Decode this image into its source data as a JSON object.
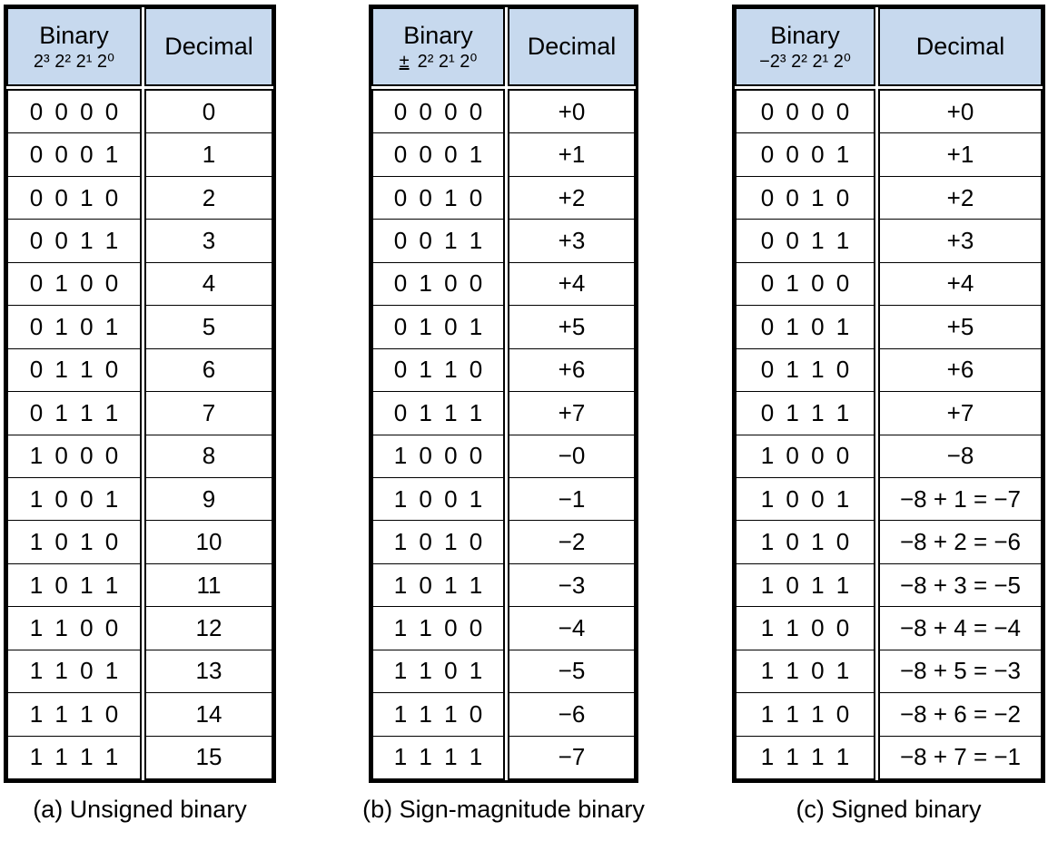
{
  "page": {
    "background_color": "#ffffff",
    "header_fill_color": "#c7d9ee",
    "border_color": "#000000"
  },
  "tables": [
    {
      "caption": "(a) Unsigned binary",
      "header": {
        "binary_label": "Binary",
        "sign_prefix": "",
        "powers": "2³ 2² 2¹ 2⁰",
        "decimal_label": "Decimal"
      },
      "rows": [
        {
          "binary": "0 0 0 0",
          "decimal": "0"
        },
        {
          "binary": "0 0 0 1",
          "decimal": "1"
        },
        {
          "binary": "0 0 1 0",
          "decimal": "2"
        },
        {
          "binary": "0 0 1 1",
          "decimal": "3"
        },
        {
          "binary": "0 1 0 0",
          "decimal": "4"
        },
        {
          "binary": "0 1 0 1",
          "decimal": "5"
        },
        {
          "binary": "0 1 1 0",
          "decimal": "6"
        },
        {
          "binary": "0 1 1 1",
          "decimal": "7"
        },
        {
          "binary": "1 0 0 0",
          "decimal": "8"
        },
        {
          "binary": "1 0 0 1",
          "decimal": "9"
        },
        {
          "binary": "1 0 1 0",
          "decimal": "10"
        },
        {
          "binary": "1 0 1 1",
          "decimal": "11"
        },
        {
          "binary": "1 1 0 0",
          "decimal": "12"
        },
        {
          "binary": "1 1 0 1",
          "decimal": "13"
        },
        {
          "binary": "1 1 1 0",
          "decimal": "14"
        },
        {
          "binary": "1 1 1 1",
          "decimal": "15"
        }
      ]
    },
    {
      "caption": "(b) Sign-magnitude binary",
      "header": {
        "binary_label": "Binary",
        "sign_prefix": "±",
        "powers": "2² 2¹ 2⁰",
        "decimal_label": "Decimal"
      },
      "rows": [
        {
          "binary": "0 0 0 0",
          "decimal": "+0"
        },
        {
          "binary": "0 0 0 1",
          "decimal": "+1"
        },
        {
          "binary": "0 0 1 0",
          "decimal": "+2"
        },
        {
          "binary": "0 0 1 1",
          "decimal": "+3"
        },
        {
          "binary": "0 1 0 0",
          "decimal": "+4"
        },
        {
          "binary": "0 1 0 1",
          "decimal": "+5"
        },
        {
          "binary": "0 1 1 0",
          "decimal": "+6"
        },
        {
          "binary": "0 1 1 1",
          "decimal": "+7"
        },
        {
          "binary": "1 0 0 0",
          "decimal": "−0"
        },
        {
          "binary": "1 0 0 1",
          "decimal": "−1"
        },
        {
          "binary": "1 0 1 0",
          "decimal": "−2"
        },
        {
          "binary": "1 0 1 1",
          "decimal": "−3"
        },
        {
          "binary": "1 1 0 0",
          "decimal": "−4"
        },
        {
          "binary": "1 1 0 1",
          "decimal": "−5"
        },
        {
          "binary": "1 1 1 0",
          "decimal": "−6"
        },
        {
          "binary": "1 1 1 1",
          "decimal": "−7"
        }
      ]
    },
    {
      "caption": "(c) Signed binary",
      "header": {
        "binary_label": "Binary",
        "sign_prefix": "",
        "powers": "−2³ 2² 2¹ 2⁰",
        "decimal_label": "Decimal"
      },
      "rows": [
        {
          "binary": "0 0 0 0",
          "decimal": "+0"
        },
        {
          "binary": "0 0 0 1",
          "decimal": "+1"
        },
        {
          "binary": "0 0 1 0",
          "decimal": "+2"
        },
        {
          "binary": "0 0 1 1",
          "decimal": "+3"
        },
        {
          "binary": "0 1 0 0",
          "decimal": "+4"
        },
        {
          "binary": "0 1 0 1",
          "decimal": "+5"
        },
        {
          "binary": "0 1 1 0",
          "decimal": "+6"
        },
        {
          "binary": "0 1 1 1",
          "decimal": "+7"
        },
        {
          "binary": "1 0 0 0",
          "decimal": "−8"
        },
        {
          "binary": "1 0 0 1",
          "decimal": "−8 + 1 = −7"
        },
        {
          "binary": "1 0 1 0",
          "decimal": "−8 + 2 = −6"
        },
        {
          "binary": "1 0 1 1",
          "decimal": "−8 + 3 = −5"
        },
        {
          "binary": "1 1 0 0",
          "decimal": "−8 + 4 = −4"
        },
        {
          "binary": "1 1 0 1",
          "decimal": "−8 + 5 = −3"
        },
        {
          "binary": "1 1 1 0",
          "decimal": "−8 + 6 = −2"
        },
        {
          "binary": "1 1 1 1",
          "decimal": "−8 + 7 = −1"
        }
      ]
    }
  ]
}
